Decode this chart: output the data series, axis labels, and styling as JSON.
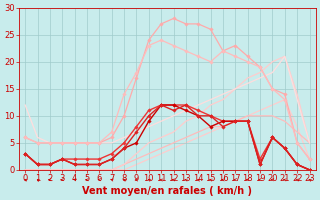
{
  "background_color": "#c8ecec",
  "grid_color": "#a0cccc",
  "xlabel": "Vent moyen/en rafales ( km/h )",
  "xlabel_color": "#cc0000",
  "xlabel_fontsize": 7,
  "tick_color": "#cc0000",
  "tick_fontsize": 6,
  "xlim": [
    -0.5,
    23.5
  ],
  "ylim": [
    0,
    30
  ],
  "yticks": [
    0,
    5,
    10,
    15,
    20,
    25,
    30
  ],
  "xticks": [
    0,
    1,
    2,
    3,
    4,
    5,
    6,
    7,
    8,
    9,
    10,
    11,
    12,
    13,
    14,
    15,
    16,
    17,
    18,
    19,
    20,
    21,
    22,
    23
  ],
  "series": [
    {
      "x": [
        0,
        1,
        2,
        3,
        4,
        5,
        6,
        7,
        8,
        9,
        10,
        11,
        12,
        13,
        14,
        15,
        16,
        17,
        18,
        19,
        20,
        21,
        22,
        23
      ],
      "y": [
        3,
        1,
        1,
        2,
        1,
        1,
        1,
        2,
        4,
        5,
        9,
        12,
        12,
        11,
        10,
        8,
        9,
        9,
        9,
        1,
        6,
        4,
        1,
        0
      ],
      "color": "#cc0000",
      "lw": 1.0,
      "marker": "D",
      "markersize": 1.8,
      "zorder": 5
    },
    {
      "x": [
        0,
        1,
        2,
        3,
        4,
        5,
        6,
        7,
        8,
        9,
        10,
        11,
        12,
        13,
        14,
        15,
        16,
        17,
        18,
        19,
        20,
        21,
        22,
        23
      ],
      "y": [
        3,
        1,
        1,
        2,
        1,
        1,
        1,
        2,
        4,
        7,
        10,
        12,
        11,
        12,
        10,
        10,
        8,
        9,
        9,
        1,
        6,
        4,
        1,
        0
      ],
      "color": "#dd2222",
      "lw": 1.0,
      "marker": "D",
      "markersize": 1.8,
      "zorder": 5
    },
    {
      "x": [
        0,
        1,
        2,
        3,
        4,
        5,
        6,
        7,
        8,
        9,
        10,
        11,
        12,
        13,
        14,
        15,
        16,
        17,
        18,
        19,
        20,
        21,
        22,
        23
      ],
      "y": [
        3,
        1,
        1,
        2,
        2,
        2,
        2,
        3,
        5,
        8,
        11,
        12,
        12,
        12,
        11,
        10,
        9,
        9,
        9,
        2,
        6,
        4,
        1,
        0
      ],
      "color": "#ee3333",
      "lw": 1.0,
      "marker": "D",
      "markersize": 1.8,
      "zorder": 4
    },
    {
      "x": [
        0,
        1,
        2,
        3,
        4,
        5,
        6,
        7,
        8,
        9,
        10,
        11,
        12,
        13,
        14,
        15,
        16,
        17,
        18,
        19,
        20,
        21,
        22,
        23
      ],
      "y": [
        0,
        0,
        0,
        0,
        0,
        0,
        0,
        0,
        1,
        2,
        3,
        4,
        5,
        6,
        7,
        8,
        8,
        9,
        10,
        10,
        10,
        9,
        7,
        5
      ],
      "color": "#ffbbbb",
      "lw": 0.9,
      "marker": null,
      "markersize": 0,
      "zorder": 2
    },
    {
      "x": [
        0,
        1,
        2,
        3,
        4,
        5,
        6,
        7,
        8,
        9,
        10,
        11,
        12,
        13,
        14,
        15,
        16,
        17,
        18,
        19,
        20,
        21,
        22,
        23
      ],
      "y": [
        0,
        0,
        0,
        0,
        0,
        0,
        0,
        0,
        1,
        3,
        5,
        6,
        7,
        9,
        10,
        12,
        13,
        15,
        17,
        18,
        20,
        21,
        14,
        5
      ],
      "color": "#ffcccc",
      "lw": 0.9,
      "marker": null,
      "markersize": 0,
      "zorder": 2
    },
    {
      "x": [
        0,
        1,
        2,
        3,
        4,
        5,
        6,
        7,
        8,
        9,
        10,
        11,
        12,
        13,
        14,
        15,
        16,
        17,
        18,
        19,
        20,
        21,
        22,
        23
      ],
      "y": [
        12,
        6,
        5,
        5,
        5,
        5,
        5,
        5,
        6,
        7,
        8,
        9,
        10,
        11,
        12,
        13,
        14,
        15,
        16,
        17,
        18,
        21,
        13,
        5
      ],
      "color": "#ffdddd",
      "lw": 0.9,
      "marker": null,
      "markersize": 0,
      "zorder": 2
    },
    {
      "x": [
        0,
        1,
        2,
        3,
        4,
        5,
        6,
        7,
        8,
        9,
        10,
        11,
        12,
        13,
        14,
        15,
        16,
        17,
        18,
        19,
        20,
        21,
        22,
        23
      ],
      "y": [
        6,
        5,
        5,
        5,
        5,
        5,
        5,
        6,
        10,
        17,
        24,
        27,
        28,
        27,
        27,
        26,
        22,
        23,
        21,
        19,
        15,
        14,
        5,
        2
      ],
      "color": "#ffaaaa",
      "lw": 0.9,
      "marker": "D",
      "markersize": 1.8,
      "zorder": 3
    },
    {
      "x": [
        0,
        1,
        2,
        3,
        4,
        5,
        6,
        7,
        8,
        9,
        10,
        11,
        12,
        13,
        14,
        15,
        16,
        17,
        18,
        19,
        20,
        21,
        22,
        23
      ],
      "y": [
        6,
        5,
        5,
        5,
        5,
        5,
        5,
        7,
        14,
        18,
        23,
        24,
        23,
        22,
        21,
        20,
        22,
        21,
        20,
        19,
        15,
        13,
        5,
        2
      ],
      "color": "#ffbbbb",
      "lw": 0.9,
      "marker": "D",
      "markersize": 1.8,
      "zorder": 3
    },
    {
      "x": [
        0,
        1,
        2,
        3,
        4,
        5,
        6,
        7,
        8,
        9,
        10,
        11,
        12,
        13,
        14,
        15,
        16,
        17,
        18,
        19,
        20,
        21,
        22,
        23
      ],
      "y": [
        0,
        0,
        0,
        0,
        0,
        0,
        0,
        0,
        0,
        1,
        2,
        3,
        4,
        5,
        6,
        7,
        8,
        9,
        10,
        11,
        12,
        13,
        8,
        2
      ],
      "color": "#ffcccc",
      "lw": 0.9,
      "marker": null,
      "markersize": 0,
      "zorder": 1
    }
  ],
  "arrow_directions": [
    225,
    210,
    260,
    270,
    255,
    255,
    265,
    235,
    225,
    235,
    225,
    235,
    245,
    235,
    225,
    235,
    245,
    265,
    275,
    285,
    255,
    245,
    235,
    225
  ]
}
